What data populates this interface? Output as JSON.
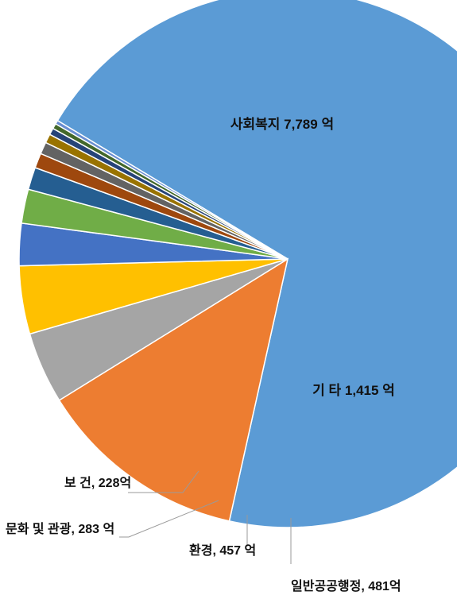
{
  "chart_data": {
    "type": "pie",
    "title": "",
    "unit": "억",
    "slices": [
      {
        "name": "사회복지",
        "value": 7789,
        "label": "사회복지 7,789 억",
        "color": "#5b9bd5"
      },
      {
        "name": "기 타",
        "value": 1415,
        "label": "기 타 1,415 억",
        "color": "#ed7d31"
      },
      {
        "name": "일반공공행정",
        "value": 481,
        "label": "일반공공행정, 481억",
        "color": "#a5a5a5"
      },
      {
        "name": "환경",
        "value": 457,
        "label": "환경, 457 억",
        "color": "#ffc000"
      },
      {
        "name": "문화 및 관광",
        "value": 283,
        "label": "문화 및 관광, 283 억",
        "color": "#4472c4"
      },
      {
        "name": "보 건",
        "value": 228,
        "label": "보 건, 228억",
        "color": "#70ad47"
      },
      {
        "name": "",
        "value": 150,
        "label": "",
        "color": "#255e91"
      },
      {
        "name": "",
        "value": 100,
        "label": "",
        "color": "#9e480e"
      },
      {
        "name": "",
        "value": 80,
        "label": "",
        "color": "#636363"
      },
      {
        "name": "",
        "value": 60,
        "label": "",
        "color": "#997300"
      },
      {
        "name": "",
        "value": 45,
        "label": "",
        "color": "#264478"
      },
      {
        "name": "",
        "value": 35,
        "label": "",
        "color": "#43682b"
      },
      {
        "name": "",
        "value": 25,
        "label": "",
        "color": "#698ed0"
      }
    ]
  }
}
